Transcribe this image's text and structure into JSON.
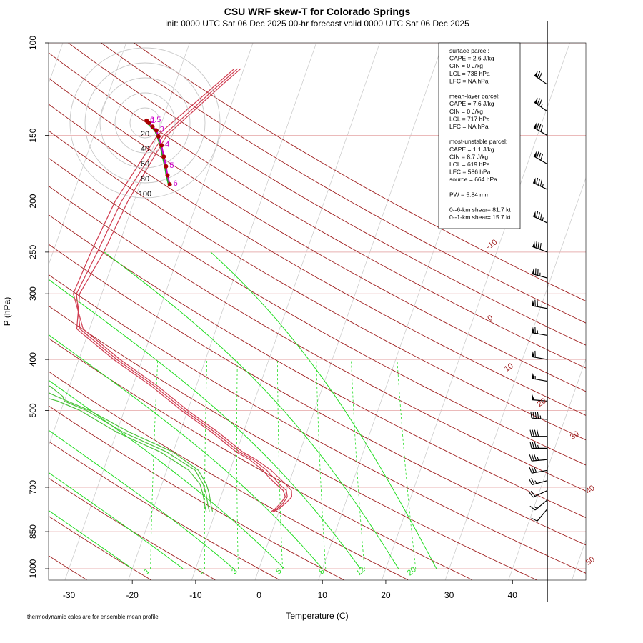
{
  "chart_data": {
    "type": "line",
    "chart_kind": "skew-T log-P sounding with hodograph",
    "title": "CSU WRF skew-T for Colorado Springs",
    "subtitle": "init: 0000 UTC Sat 06 Dec 2025     00-hr forecast valid 0000 UTC Sat 06 Dec 2025",
    "xlabel": "Temperature (C)",
    "ylabel": "P (hPa)",
    "xlim": [
      -33,
      43
    ],
    "ylim": [
      1000,
      100
    ],
    "y_scale": "log",
    "x_ticks": [
      "-30",
      "-20",
      "-10",
      "0",
      "10",
      "20",
      "30",
      "40"
    ],
    "y_ticks": [
      "100",
      "150",
      "200",
      "250",
      "300",
      "400",
      "500",
      "700",
      "850",
      "1000"
    ],
    "footnote": "thermodynamic calcs are for ensemble mean profile",
    "dry_adiabat_labels": [
      "-10",
      "0",
      "10",
      "20",
      "30",
      "40",
      "50"
    ],
    "mixing_ratio_labels": [
      "1",
      "2",
      "3",
      "5",
      "8",
      "12",
      "20"
    ],
    "stats": {
      "surface": [
        "surface parcel:",
        "CAPE = 2.6 J/kg",
        "CIN = 0 J/kg",
        "LCL = 738 hPa",
        "LFC = NA hPa"
      ],
      "mean_layer": [
        "mean-layer parcel:",
        "CAPE = 7.6 J/kg",
        "CIN = 0 J/kg",
        "LCL = 717 hPa",
        "LFC = NA hPa"
      ],
      "most_unstable": [
        "most-unstable parcel:",
        "CAPE = 1.1 J/kg",
        "CIN = 8.7 J/kg",
        "LCL = 619 hPa",
        "LFC = 586 hPa",
        "source = 664 hPa"
      ],
      "pw": "PW =  5.84 mm",
      "shear": [
        "0--6-km shear= 81.7 kt",
        "0--1-km shear= 15.7 kt"
      ]
    },
    "hodograph_rings": [
      "20",
      "40",
      "60",
      "80",
      "100"
    ],
    "hodograph_labels": [
      "0.5",
      "1",
      "3",
      "4",
      "5",
      "6"
    ],
    "colors": {
      "temperature": "#d03c50",
      "dewpoint": "#4cc23c",
      "dry_adiabat": "#a02020",
      "moist_adiabat": "#22dd22",
      "mixing_ratio": "#22dd22",
      "isobar": "#e8b0b0",
      "isotherm": "#c8c8c8",
      "hodograph_ensemble": "#cc00cc",
      "hodograph_mean": "#aa0000",
      "hodograph_low": "#22aa22"
    },
    "series": [
      {
        "role": "temperature",
        "members": [
          {
            "p": [
              778,
              770,
              750,
              730,
              710,
              690,
              670,
              650,
              620,
              600,
              550,
              500,
              450,
              400,
              350,
              300,
              250,
              200,
              150,
              120,
              112
            ],
            "t": [
              -1.0,
              -0.5,
              0.2,
              0.5,
              0.0,
              -1.5,
              -2.8,
              -4.2,
              -7.0,
              -9.5,
              -14.5,
              -20.5,
              -26.5,
              -34.0,
              -41.5,
              -44.0,
              -43.0,
              -42.0,
              -39.0,
              -33.0,
              -31.0
            ]
          },
          {
            "p": [
              778,
              770,
              750,
              730,
              710,
              690,
              670,
              650,
              620,
              600,
              550,
              500,
              450,
              400,
              350,
              300,
              250,
              200,
              150,
              120,
              112
            ],
            "t": [
              -0.8,
              -0.2,
              0.6,
              1.2,
              0.8,
              -0.5,
              -2.0,
              -3.5,
              -6.5,
              -9.0,
              -14.0,
              -20.0,
              -26.0,
              -33.5,
              -41.0,
              -44.5,
              -44.0,
              -43.0,
              -40.0,
              -33.5,
              -31.5
            ]
          },
          {
            "p": [
              778,
              770,
              750,
              730,
              710,
              690,
              670,
              650,
              620,
              600,
              550,
              500,
              450,
              400,
              350,
              300,
              250,
              200,
              150,
              120,
              112
            ],
            "t": [
              -1.2,
              -0.8,
              -0.2,
              0.2,
              -0.5,
              -2.0,
              -3.5,
              -4.8,
              -7.5,
              -10.0,
              -15.0,
              -21.0,
              -27.0,
              -34.5,
              -42.0,
              -43.5,
              -42.0,
              -41.0,
              -38.5,
              -32.5,
              -30.5
            ]
          }
        ]
      },
      {
        "role": "dewpoint",
        "members": [
          {
            "p": [
              778,
              760,
              720,
              690,
              650,
              600,
              550,
              500,
              480,
              470,
              450,
              430,
              400,
              360,
              300,
              250,
              220,
              210,
              200,
              180,
              160
            ],
            "td": [
              -11.0,
              -11.5,
              -12.5,
              -13.5,
              -15.5,
              -21.0,
              -29.0,
              -36.0,
              -40.0,
              -40.5,
              -43.0,
              -48.0,
              -49.5,
              -57.0,
              -66.0,
              -72.0,
              -75.0,
              -75.5,
              -75.0,
              -72.0,
              -70.0
            ]
          },
          {
            "p": [
              778,
              760,
              720,
              690,
              650,
              600,
              550,
              500,
              480,
              470,
              450,
              430,
              400,
              360,
              300,
              250,
              220,
              210,
              200,
              180,
              160
            ],
            "td": [
              -11.5,
              -12.0,
              -13.0,
              -14.0,
              -16.5,
              -22.0,
              -30.0,
              -37.0,
              -41.0,
              -44.0,
              -47.0,
              -48.0,
              -50.0,
              -57.5,
              -67.0,
              -73.0,
              -75.5,
              -76.0,
              -75.5,
              -72.5,
              -70.5
            ]
          },
          {
            "p": [
              778,
              760,
              720,
              690,
              650,
              600,
              550,
              500,
              480,
              470,
              450,
              430,
              400,
              360,
              300,
              250,
              220,
              210,
              200,
              180,
              160
            ],
            "td": [
              -10.5,
              -11.0,
              -12.0,
              -13.0,
              -15.0,
              -20.0,
              -28.0,
              -35.5,
              -39.5,
              -41.5,
              -45.5,
              -49.0,
              -51.0,
              -58.5,
              -68.0,
              -73.5,
              -76.0,
              -76.5,
              -76.0,
              -73.0,
              -71.0
            ]
          }
        ]
      }
    ],
    "wind_barbs": [
      {
        "p": 770,
        "dir": 220,
        "spd": 10
      },
      {
        "p": 740,
        "dir": 230,
        "spd": 15
      },
      {
        "p": 710,
        "dir": 245,
        "spd": 20
      },
      {
        "p": 680,
        "dir": 255,
        "spd": 25
      },
      {
        "p": 650,
        "dir": 260,
        "spd": 30
      },
      {
        "p": 620,
        "dir": 265,
        "spd": 35
      },
      {
        "p": 590,
        "dir": 270,
        "spd": 35
      },
      {
        "p": 560,
        "dir": 270,
        "spd": 40
      },
      {
        "p": 520,
        "dir": 275,
        "spd": 45
      },
      {
        "p": 480,
        "dir": 275,
        "spd": 50
      },
      {
        "p": 440,
        "dir": 280,
        "spd": 55
      },
      {
        "p": 400,
        "dir": 280,
        "spd": 60
      },
      {
        "p": 360,
        "dir": 280,
        "spd": 65
      },
      {
        "p": 320,
        "dir": 280,
        "spd": 70
      },
      {
        "p": 280,
        "dir": 285,
        "spd": 75
      },
      {
        "p": 250,
        "dir": 290,
        "spd": 80
      },
      {
        "p": 220,
        "dir": 295,
        "spd": 85
      },
      {
        "p": 190,
        "dir": 295,
        "spd": 85
      },
      {
        "p": 170,
        "dir": 300,
        "spd": 80
      },
      {
        "p": 150,
        "dir": 300,
        "spd": 80
      },
      {
        "p": 135,
        "dir": 305,
        "spd": 75
      },
      {
        "p": 120,
        "dir": 305,
        "spd": 70
      }
    ],
    "hodograph": {
      "u": [
        2,
        3,
        5,
        10,
        15,
        18,
        22,
        25,
        28,
        30,
        33
      ],
      "v": [
        3,
        2,
        0,
        -5,
        -10,
        -18,
        -30,
        -45,
        -58,
        -70,
        -82
      ],
      "labels_at_index": [
        0,
        1,
        4,
        6,
        8,
        10
      ]
    }
  }
}
